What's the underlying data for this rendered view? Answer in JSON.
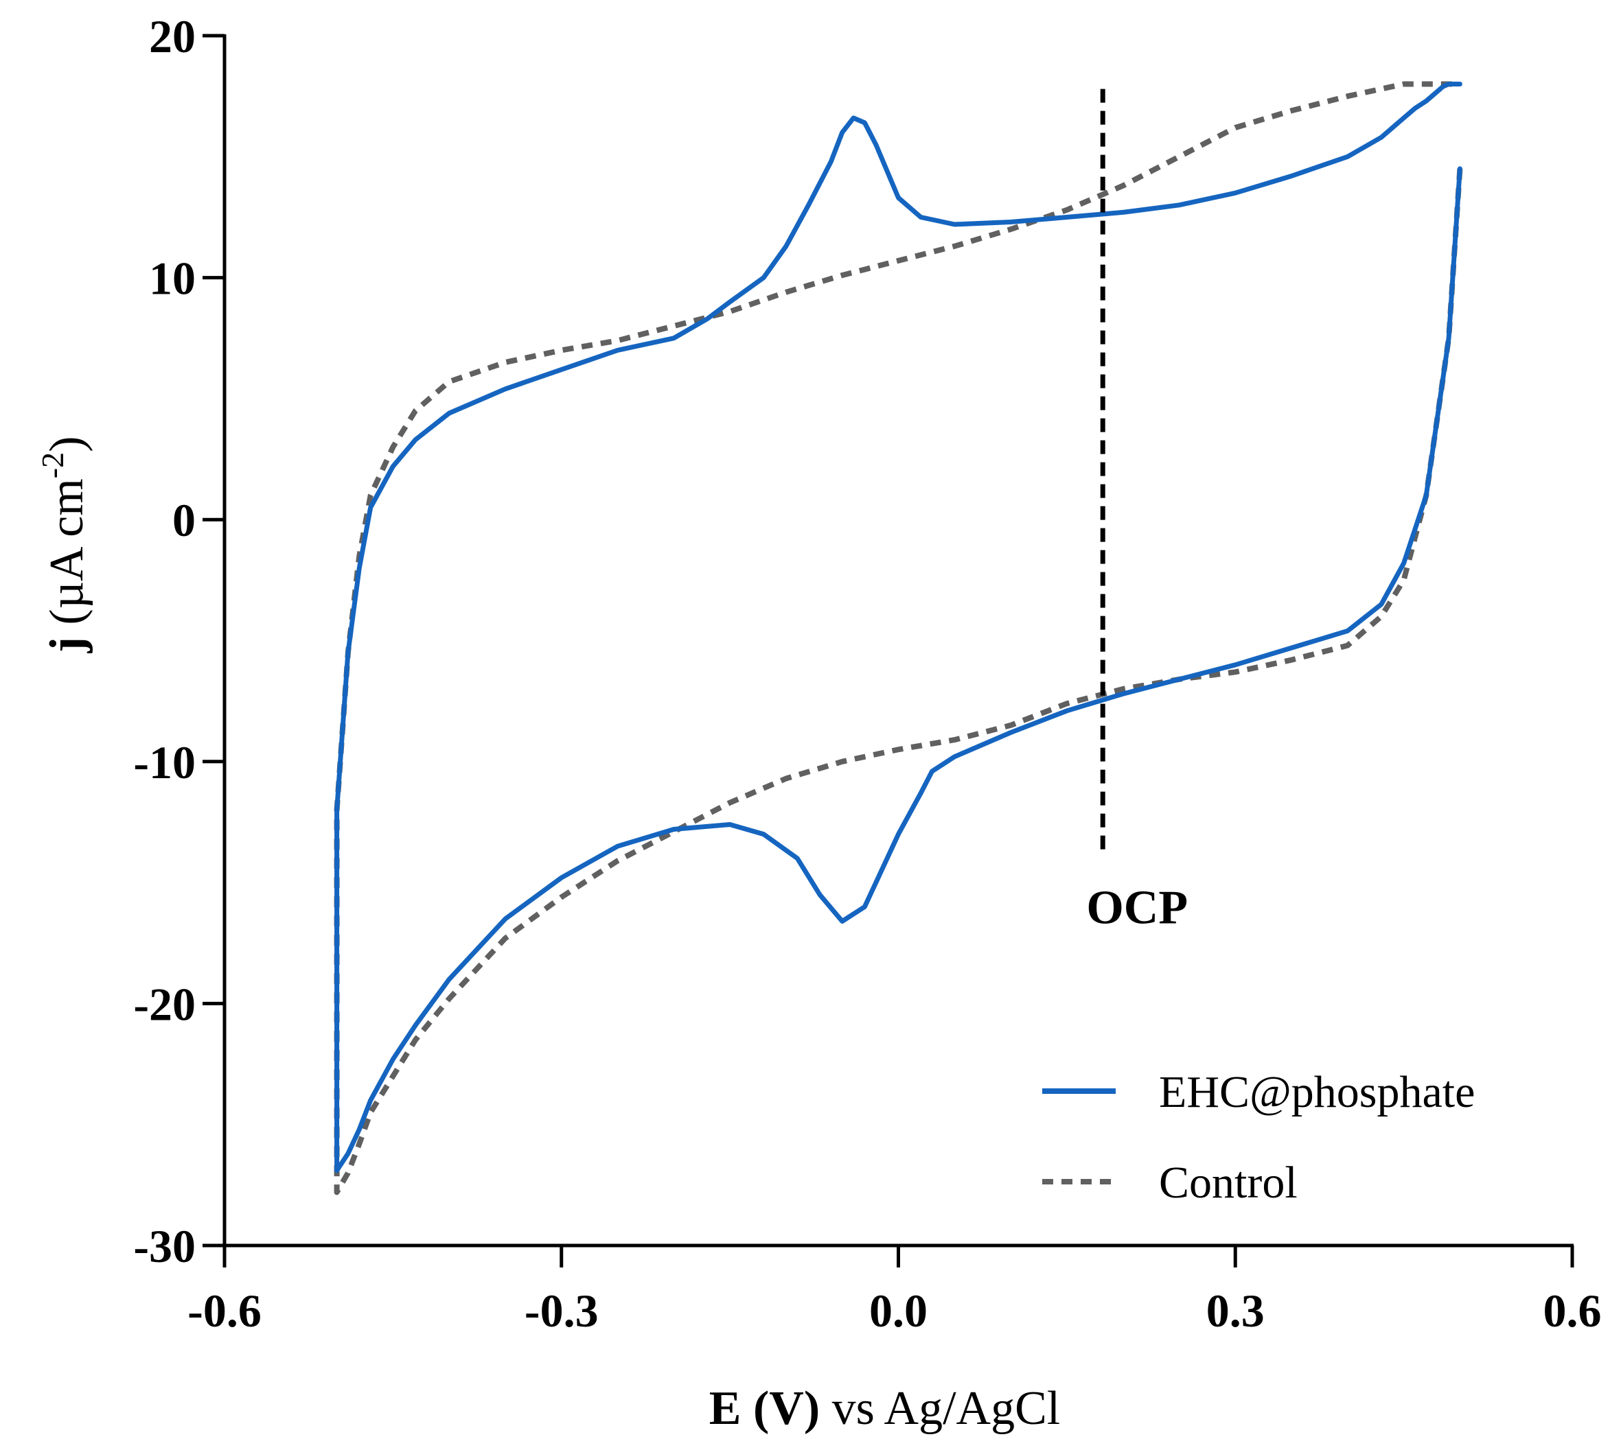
{
  "chart_data": {
    "type": "line",
    "title": "",
    "xlabel_bold": "E (V)",
    "xlabel_rest": " vs Ag/AgCl",
    "ylabel_bold": "j",
    "ylabel_unit_pre": " (µA cm",
    "ylabel_unit_sup": "-2",
    "ylabel_unit_post": ")",
    "xlim": [
      -0.6,
      0.6
    ],
    "ylim": [
      -30,
      20
    ],
    "xticks": [
      -0.6,
      -0.3,
      0.0,
      0.3,
      0.6
    ],
    "xtick_labels": [
      "-0.6",
      "-0.3",
      "0.0",
      "0.3",
      "0.6"
    ],
    "yticks": [
      -30,
      -20,
      -10,
      0,
      10,
      20
    ],
    "ytick_labels": [
      "-30",
      "-20",
      "-10",
      "0",
      "10",
      "20"
    ],
    "grid": false,
    "legend_position": "bottom-right",
    "annotations": [
      {
        "label": "OCP",
        "x": 0.182,
        "y_from": -13.9,
        "y_to": 17.8,
        "style": "dashed"
      }
    ],
    "series": [
      {
        "name": "EHC@phosphate",
        "color": "#1565C0",
        "style": "solid",
        "x": [
          0.5,
          0.49,
          0.47,
          0.45,
          0.43,
          0.4,
          0.35,
          0.3,
          0.25,
          0.2,
          0.15,
          0.1,
          0.05,
          0.03,
          0.02,
          0.0,
          -0.02,
          -0.03,
          -0.05,
          -0.07,
          -0.09,
          -0.12,
          -0.15,
          -0.2,
          -0.25,
          -0.3,
          -0.35,
          -0.4,
          -0.43,
          -0.45,
          -0.47,
          -0.48,
          -0.49,
          -0.5,
          -0.5,
          -0.5,
          -0.49,
          -0.48,
          -0.47,
          -0.45,
          -0.43,
          -0.4,
          -0.35,
          -0.3,
          -0.25,
          -0.2,
          -0.17,
          -0.15,
          -0.12,
          -0.1,
          -0.08,
          -0.06,
          -0.05,
          -0.04,
          -0.03,
          -0.02,
          0.0,
          0.02,
          0.05,
          0.1,
          0.15,
          0.2,
          0.25,
          0.3,
          0.35,
          0.4,
          0.43,
          0.45,
          0.46,
          0.47,
          0.48,
          0.485,
          0.49,
          0.495,
          0.5
        ],
        "y": [
          14.5,
          7.5,
          1.0,
          -1.8,
          -3.5,
          -4.6,
          -5.3,
          -6.0,
          -6.6,
          -7.2,
          -7.9,
          -8.8,
          -9.8,
          -10.4,
          -11.3,
          -13.0,
          -15.0,
          -16.0,
          -16.6,
          -15.5,
          -14.0,
          -13.0,
          -12.6,
          -12.8,
          -13.5,
          -14.8,
          -16.5,
          -19.0,
          -20.9,
          -22.3,
          -24.0,
          -25.2,
          -26.2,
          -26.9,
          -20.0,
          -12.0,
          -5.5,
          -2.0,
          0.5,
          2.2,
          3.3,
          4.4,
          5.4,
          6.2,
          7.0,
          7.5,
          8.3,
          9.0,
          10.0,
          11.3,
          13.0,
          14.8,
          16.0,
          16.6,
          16.4,
          15.5,
          13.3,
          12.5,
          12.2,
          12.3,
          12.5,
          12.7,
          13.0,
          13.5,
          14.2,
          15.0,
          15.8,
          16.6,
          17.0,
          17.3,
          17.7,
          17.9,
          18.0,
          18.0,
          18.0
        ]
      },
      {
        "name": "Control",
        "color": "#606060",
        "style": "dashed",
        "x": [
          0.5,
          0.49,
          0.47,
          0.45,
          0.43,
          0.4,
          0.35,
          0.3,
          0.25,
          0.2,
          0.15,
          0.1,
          0.05,
          0.0,
          -0.05,
          -0.1,
          -0.15,
          -0.2,
          -0.25,
          -0.3,
          -0.35,
          -0.4,
          -0.43,
          -0.45,
          -0.47,
          -0.48,
          -0.49,
          -0.5,
          -0.5,
          -0.5,
          -0.49,
          -0.48,
          -0.47,
          -0.45,
          -0.43,
          -0.4,
          -0.35,
          -0.3,
          -0.25,
          -0.2,
          -0.15,
          -0.1,
          -0.05,
          0.0,
          0.05,
          0.1,
          0.15,
          0.2,
          0.25,
          0.3,
          0.35,
          0.4,
          0.43,
          0.45,
          0.47,
          0.48,
          0.49,
          0.5
        ],
        "y": [
          14.5,
          7.5,
          1.0,
          -2.5,
          -4.0,
          -5.2,
          -5.8,
          -6.3,
          -6.6,
          -7.0,
          -7.6,
          -8.5,
          -9.1,
          -9.5,
          -10.0,
          -10.7,
          -11.7,
          -12.9,
          -14.1,
          -15.6,
          -17.3,
          -19.8,
          -21.5,
          -23.0,
          -24.5,
          -25.8,
          -27.0,
          -27.8,
          -20.0,
          -12.0,
          -5.5,
          -1.5,
          1.0,
          3.0,
          4.5,
          5.7,
          6.5,
          7.0,
          7.4,
          8.0,
          8.6,
          9.4,
          10.1,
          10.7,
          11.3,
          12.0,
          12.8,
          13.8,
          15.0,
          16.2,
          16.9,
          17.5,
          17.8,
          18.0,
          18.0,
          18.0,
          18.0,
          18.0
        ]
      }
    ]
  }
}
